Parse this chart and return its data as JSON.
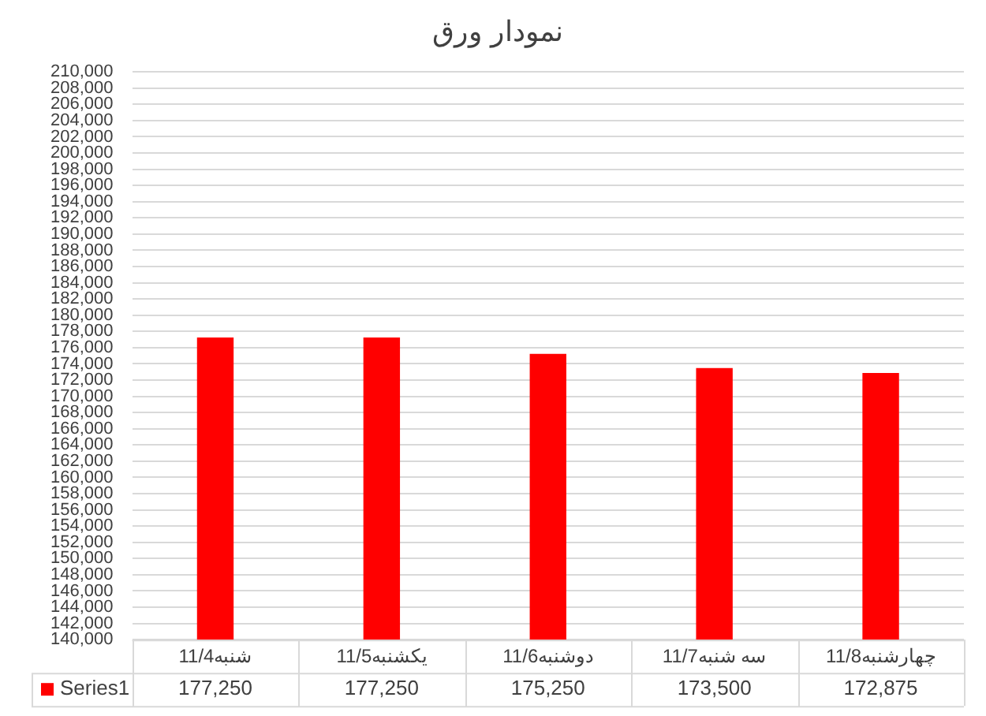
{
  "chart_data": {
    "type": "bar",
    "title": "نمودار ورق",
    "categories": [
      "11/4شنبه",
      "11/5یکشنبه",
      "11/6دوشنبه",
      "11/7سه شنبه",
      "11/8چهارشنبه"
    ],
    "series": [
      {
        "name": "Series1",
        "color": "#ff0000",
        "values": [
          177250,
          177250,
          175250,
          173500,
          172875
        ],
        "value_labels": [
          "177,250",
          "177,250",
          "175,250",
          "173,500",
          "172,875"
        ]
      }
    ],
    "ylim": [
      140000,
      210000
    ],
    "yticks": [
      {
        "value": 140000,
        "label": "140,000"
      },
      {
        "value": 142000,
        "label": "142,000"
      },
      {
        "value": 144000,
        "label": "144,000"
      },
      {
        "value": 146000,
        "label": "146,000"
      },
      {
        "value": 148000,
        "label": "148,000"
      },
      {
        "value": 150000,
        "label": "150,000"
      },
      {
        "value": 152000,
        "label": "152,000"
      },
      {
        "value": 154000,
        "label": "154,000"
      },
      {
        "value": 156000,
        "label": "156,000"
      },
      {
        "value": 158000,
        "label": "158,000"
      },
      {
        "value": 160000,
        "label": "160,000"
      },
      {
        "value": 162000,
        "label": "162,000"
      },
      {
        "value": 164000,
        "label": "164,000"
      },
      {
        "value": 166000,
        "label": "166,000"
      },
      {
        "value": 168000,
        "label": "168,000"
      },
      {
        "value": 170000,
        "label": "170,000"
      },
      {
        "value": 172000,
        "label": "172,000"
      },
      {
        "value": 174000,
        "label": "174,000"
      },
      {
        "value": 176000,
        "label": "176,000"
      },
      {
        "value": 178000,
        "label": "178,000"
      },
      {
        "value": 180000,
        "label": "180,000"
      },
      {
        "value": 182000,
        "label": "182,000"
      },
      {
        "value": 184000,
        "label": "184,000"
      },
      {
        "value": 186000,
        "label": "186,000"
      },
      {
        "value": 188000,
        "label": "188,000"
      },
      {
        "value": 190000,
        "label": "190,000"
      },
      {
        "value": 192000,
        "label": "192,000"
      },
      {
        "value": 194000,
        "label": "194,000"
      },
      {
        "value": 196000,
        "label": "196,000"
      },
      {
        "value": 198000,
        "label": "198,000"
      },
      {
        "value": 200000,
        "label": "200,000"
      },
      {
        "value": 202000,
        "label": "202,000"
      },
      {
        "value": 204000,
        "label": "204,000"
      },
      {
        "value": 206000,
        "label": "206,000"
      },
      {
        "value": 208000,
        "label": "208,000"
      },
      {
        "value": 210000,
        "label": "210,000"
      }
    ],
    "grid": "y",
    "legend": "bottom"
  }
}
